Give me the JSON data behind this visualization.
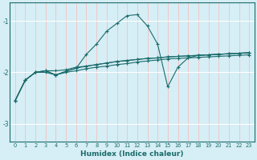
{
  "title": "",
  "xlabel": "Humidex (Indice chaleur)",
  "ylabel": "",
  "xlim": [
    -0.5,
    23.5
  ],
  "ylim": [
    -3.35,
    -0.65
  ],
  "yticks": [
    -3,
    -2,
    -1
  ],
  "xticks": [
    0,
    1,
    2,
    3,
    4,
    5,
    6,
    7,
    8,
    9,
    10,
    11,
    12,
    13,
    14,
    15,
    16,
    17,
    18,
    19,
    20,
    21,
    22,
    23
  ],
  "bg_color": "#d6eef5",
  "line_color": "#1a6b6b",
  "grid_color_v": "#f5c0c0",
  "grid_color_h": "#ffffff",
  "lines": [
    {
      "x": [
        0,
        1,
        2,
        3,
        4,
        5,
        6,
        7,
        8,
        9,
        10,
        11,
        12,
        13,
        14,
        15,
        16,
        17,
        18,
        19,
        20,
        21,
        22,
        23
      ],
      "y": [
        -2.55,
        -2.15,
        -2.0,
        -1.97,
        -1.97,
        -1.95,
        -1.9,
        -1.88,
        -1.85,
        -1.82,
        -1.79,
        -1.77,
        -1.75,
        -1.73,
        -1.72,
        -1.7,
        -1.69,
        -1.68,
        -1.67,
        -1.66,
        -1.65,
        -1.64,
        -1.63,
        -1.62
      ]
    },
    {
      "x": [
        0,
        1,
        2,
        3,
        4,
        5,
        6,
        7,
        8,
        9,
        10,
        11,
        12,
        13,
        14,
        15,
        16,
        17,
        18,
        19,
        20,
        21,
        22,
        23
      ],
      "y": [
        -2.55,
        -2.15,
        -2.0,
        -1.97,
        -2.05,
        -1.98,
        -1.92,
        -1.88,
        -1.85,
        -1.82,
        -1.79,
        -1.77,
        -1.75,
        -1.73,
        -1.72,
        -1.7,
        -1.69,
        -1.68,
        -1.67,
        -1.66,
        -1.65,
        -1.64,
        -1.63,
        -1.62
      ]
    },
    {
      "x": [
        0,
        1,
        2,
        3,
        4,
        5,
        6,
        7,
        8,
        9,
        10,
        11,
        12,
        13,
        14,
        15,
        16,
        17,
        18,
        19,
        20,
        21,
        22,
        23
      ],
      "y": [
        -2.55,
        -2.15,
        -2.0,
        -1.97,
        -2.05,
        -1.98,
        -1.92,
        -1.65,
        -1.45,
        -1.2,
        -1.05,
        -0.9,
        -0.88,
        -1.1,
        -1.45,
        -2.28,
        -1.9,
        -1.72,
        -1.67,
        -1.66,
        -1.65,
        -1.64,
        -1.63,
        -1.62
      ]
    },
    {
      "x": [
        0,
        1,
        2,
        3,
        4,
        5,
        6,
        7,
        8,
        9,
        10,
        11,
        12,
        13,
        14,
        15,
        16,
        17,
        18,
        19,
        20,
        21,
        22,
        23
      ],
      "y": [
        -2.55,
        -2.15,
        -2.0,
        -2.0,
        -2.05,
        -2.0,
        -1.97,
        -1.93,
        -1.9,
        -1.88,
        -1.85,
        -1.83,
        -1.8,
        -1.78,
        -1.76,
        -1.74,
        -1.73,
        -1.72,
        -1.71,
        -1.7,
        -1.69,
        -1.68,
        -1.67,
        -1.66
      ]
    }
  ]
}
